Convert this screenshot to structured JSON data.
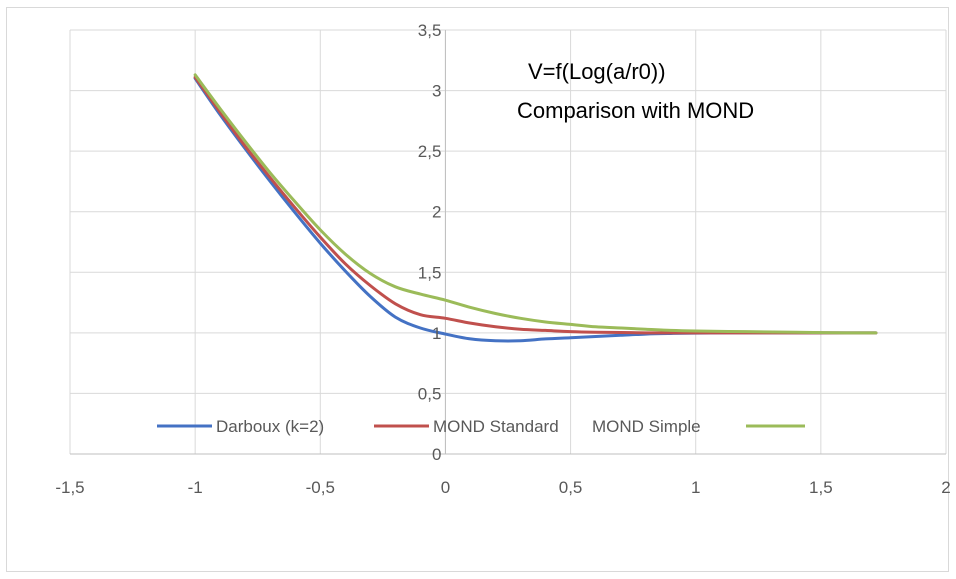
{
  "chart_data": {
    "type": "line",
    "title_lines": [
      "V=f(Log(a/r0))",
      "Comparison with MOND"
    ],
    "xlabel": "",
    "ylabel": "",
    "xlim": [
      -1.5,
      2
    ],
    "ylim": [
      0,
      3.5
    ],
    "x_ticks": [
      -1.5,
      -1,
      -0.5,
      0,
      0.5,
      1,
      1.5,
      2
    ],
    "y_ticks": [
      0,
      0.5,
      1,
      1.5,
      2,
      2.5,
      3,
      3.5
    ],
    "x_tick_labels": [
      "-1,5",
      "-1",
      "-0,5",
      "0",
      "0,5",
      "1",
      "1,5",
      "2"
    ],
    "y_tick_labels": [
      "0",
      "0,5",
      "1",
      "1,5",
      "2",
      "2,5",
      "3",
      "3,5"
    ],
    "grid": "vertical and horizontal major gridlines",
    "legend_position": "bottom (inside plot)",
    "series": [
      {
        "name": "Darboux (k=2)",
        "color": "#4472c4",
        "x": [
          -1,
          -0.9,
          -0.8,
          -0.7,
          -0.6,
          -0.5,
          -0.4,
          -0.3,
          -0.2,
          -0.1,
          0,
          0.1,
          0.2,
          0.3,
          0.4,
          0.5,
          0.6,
          0.7,
          0.8,
          0.9,
          1.0,
          1.2,
          1.4,
          1.6,
          1.72
        ],
        "y": [
          3.1,
          2.8,
          2.52,
          2.25,
          1.99,
          1.74,
          1.51,
          1.3,
          1.13,
          1.04,
          0.99,
          0.95,
          0.935,
          0.935,
          0.95,
          0.96,
          0.97,
          0.98,
          0.99,
          0.995,
          0.998,
          1.0,
          1.0,
          1.0,
          1.0
        ]
      },
      {
        "name": "MOND Standard",
        "color": "#c0504d",
        "x": [
          -1,
          -0.9,
          -0.8,
          -0.7,
          -0.6,
          -0.5,
          -0.4,
          -0.3,
          -0.2,
          -0.1,
          0,
          0.1,
          0.2,
          0.3,
          0.4,
          0.5,
          0.6,
          0.7,
          0.8,
          0.9,
          1.0,
          1.2,
          1.4,
          1.6,
          1.72
        ],
        "y": [
          3.11,
          2.82,
          2.54,
          2.28,
          2.03,
          1.79,
          1.57,
          1.39,
          1.24,
          1.15,
          1.12,
          1.08,
          1.05,
          1.03,
          1.02,
          1.01,
          1.005,
          1.003,
          1.0,
          1.0,
          1.0,
          1.0,
          1.0,
          1.0,
          1.0
        ]
      },
      {
        "name": "MOND Simple",
        "color": "#9bbb59",
        "x": [
          -1,
          -0.9,
          -0.8,
          -0.7,
          -0.6,
          -0.5,
          -0.4,
          -0.3,
          -0.2,
          -0.1,
          0,
          0.1,
          0.2,
          0.3,
          0.4,
          0.5,
          0.6,
          0.7,
          0.8,
          0.9,
          1.0,
          1.2,
          1.4,
          1.6,
          1.72
        ],
        "y": [
          3.13,
          2.85,
          2.58,
          2.32,
          2.08,
          1.85,
          1.65,
          1.49,
          1.38,
          1.32,
          1.27,
          1.21,
          1.16,
          1.12,
          1.09,
          1.07,
          1.05,
          1.04,
          1.03,
          1.02,
          1.015,
          1.01,
          1.005,
          1.0,
          1.0
        ]
      }
    ]
  }
}
